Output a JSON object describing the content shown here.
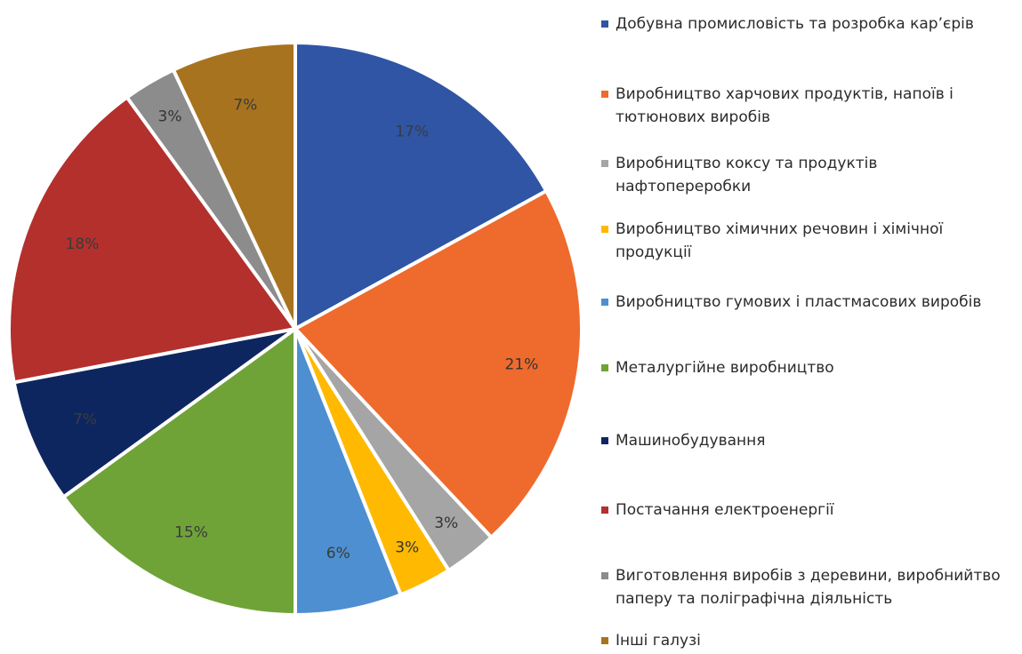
{
  "chart_data": {
    "type": "pie",
    "title": "",
    "slices": [
      {
        "name": "Добувна промисловість та розробка кар’єрів",
        "value": 17,
        "label": "17%",
        "color": "#2F55A4"
      },
      {
        "name": "Виробництво харчових продуктів, напоїв і тютюнових виробів",
        "value": 21,
        "label": "21%",
        "color": "#EE6B2D"
      },
      {
        "name": "Виробництво коксу та продуктів нафтопереробки",
        "value": 3,
        "label": "3%",
        "color": "#A5A5A5"
      },
      {
        "name": "Виробництво хімичних речовин і хімічної продукції",
        "value": 3,
        "label": "3%",
        "color": "#FFB900"
      },
      {
        "name": "Виробництво гумових і пластмасових виробів",
        "value": 6,
        "label": "6%",
        "color": "#4D8FD0"
      },
      {
        "name": "Металургійне виробництво",
        "value": 15,
        "label": "15%",
        "color": "#6FA338"
      },
      {
        "name": "Машинобудування",
        "value": 7,
        "label": "7%",
        "color": "#0E2660"
      },
      {
        "name": "Постачання електроенергії",
        "value": 18,
        "label": "18%",
        "color": "#B3302D"
      },
      {
        "name": "Виготовлення виробів з деревини, виробнийтво паперу та поліграфічна діяльність",
        "value": 3,
        "label": "3%",
        "color": "#8C8C8C"
      },
      {
        "name": "Інші галузі",
        "value": 7,
        "label": "7%",
        "color": "#A8731E"
      }
    ],
    "legend_position": "right"
  }
}
